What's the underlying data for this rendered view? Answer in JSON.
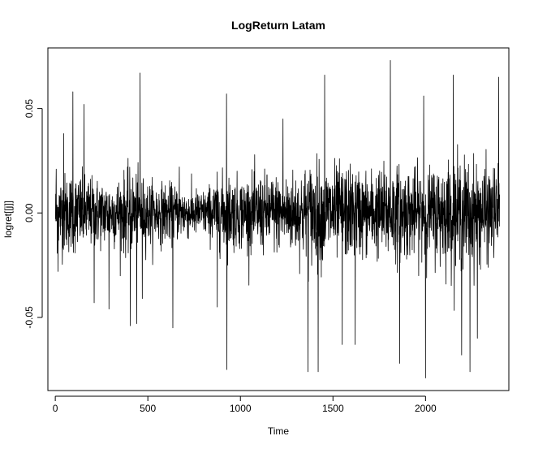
{
  "chart_data": {
    "type": "line",
    "title": "LogReturn Latam",
    "xlabel": "Time",
    "ylabel": "logret[[j]]",
    "xlim": [
      -40,
      2450
    ],
    "ylim": [
      -0.085,
      0.079
    ],
    "x_ticks": [
      0,
      500,
      1000,
      1500,
      2000
    ],
    "x_tick_labels": [
      "0",
      "500",
      "1000",
      "1500",
      "2000"
    ],
    "y_ticks": [
      -0.05,
      0.0,
      0.05
    ],
    "y_tick_labels": [
      "-0.05",
      "0.00",
      "0.05"
    ],
    "grid": false,
    "legend": "none",
    "series": [
      {
        "color": "#000000",
        "n_points": 2400,
        "x_start": 1,
        "x_step": 1,
        "volatility_profile": [
          [
            0,
            0.0125
          ],
          [
            100,
            0.0125
          ],
          [
            200,
            0.011
          ],
          [
            300,
            0.01
          ],
          [
            400,
            0.013
          ],
          [
            500,
            0.01
          ],
          [
            600,
            0.009
          ],
          [
            700,
            0.008
          ],
          [
            800,
            0.007
          ],
          [
            900,
            0.012
          ],
          [
            1000,
            0.011
          ],
          [
            1100,
            0.012
          ],
          [
            1200,
            0.012
          ],
          [
            1300,
            0.013
          ],
          [
            1400,
            0.016
          ],
          [
            1500,
            0.015
          ],
          [
            1600,
            0.014
          ],
          [
            1700,
            0.013
          ],
          [
            1800,
            0.015
          ],
          [
            1900,
            0.014
          ],
          [
            2000,
            0.013
          ],
          [
            2100,
            0.016
          ],
          [
            2200,
            0.017
          ],
          [
            2300,
            0.015
          ],
          [
            2400,
            0.014
          ]
        ],
        "extremes": [
          [
            5,
            0.021
          ],
          [
            15,
            -0.028
          ],
          [
            45,
            0.038
          ],
          [
            95,
            0.058
          ],
          [
            155,
            0.052
          ],
          [
            210,
            -0.043
          ],
          [
            290,
            -0.046
          ],
          [
            405,
            -0.054
          ],
          [
            440,
            -0.053
          ],
          [
            458,
            0.067
          ],
          [
            470,
            -0.041
          ],
          [
            635,
            -0.055
          ],
          [
            670,
            0.022
          ],
          [
            875,
            -0.045
          ],
          [
            925,
            0.057
          ],
          [
            927,
            -0.075
          ],
          [
            1230,
            0.045
          ],
          [
            1365,
            -0.076
          ],
          [
            1420,
            -0.076
          ],
          [
            1455,
            0.066
          ],
          [
            1550,
            -0.063
          ],
          [
            1620,
            -0.063
          ],
          [
            1810,
            0.073
          ],
          [
            1860,
            -0.072
          ],
          [
            1990,
            0.056
          ],
          [
            2000,
            -0.079
          ],
          [
            2150,
            0.066
          ],
          [
            2195,
            -0.068
          ],
          [
            2240,
            -0.076
          ],
          [
            2280,
            -0.06
          ],
          [
            2395,
            0.065
          ]
        ]
      }
    ]
  }
}
